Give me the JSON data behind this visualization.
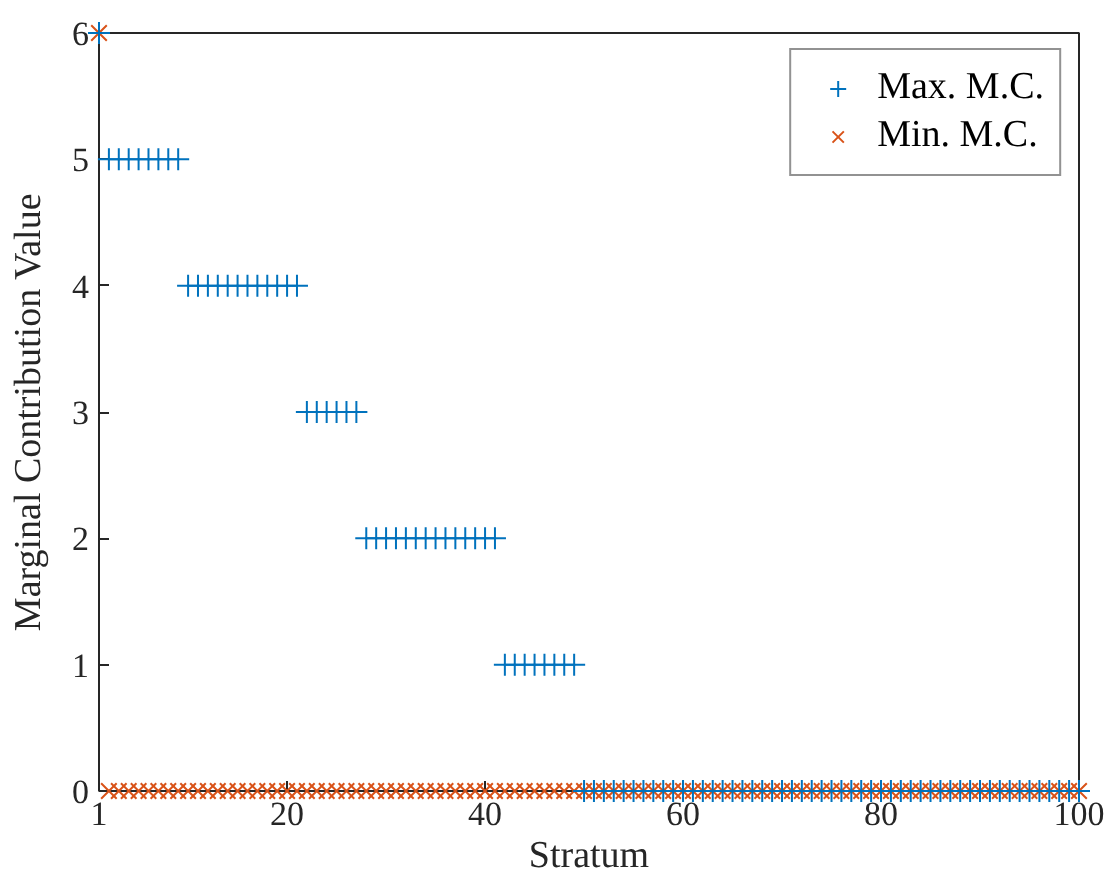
{
  "chart_data": {
    "type": "scatter",
    "xlabel": "Stratum",
    "ylabel": "Marginal Contribution Value",
    "x": [
      1,
      2,
      3,
      4,
      5,
      6,
      7,
      8,
      9,
      10,
      11,
      12,
      13,
      14,
      15,
      16,
      17,
      18,
      19,
      20,
      21,
      22,
      23,
      24,
      25,
      26,
      27,
      28,
      29,
      30,
      31,
      32,
      33,
      34,
      35,
      36,
      37,
      38,
      39,
      40,
      41,
      42,
      43,
      44,
      45,
      46,
      47,
      48,
      49,
      50,
      51,
      52,
      53,
      54,
      55,
      56,
      57,
      58,
      59,
      60,
      61,
      62,
      63,
      64,
      65,
      66,
      67,
      68,
      69,
      70,
      71,
      72,
      73,
      74,
      75,
      76,
      77,
      78,
      79,
      80,
      81,
      82,
      83,
      84,
      85,
      86,
      87,
      88,
      89,
      90,
      91,
      92,
      93,
      94,
      95,
      96,
      97,
      98,
      99,
      100
    ],
    "series": [
      {
        "name": "Max. M.C.",
        "color": "#0072bd",
        "marker": "cross",
        "values": [
          6,
          5,
          5,
          5,
          5,
          5,
          5,
          5,
          5,
          4,
          4,
          4,
          4,
          4,
          4,
          4,
          4,
          4,
          4,
          4,
          4,
          3,
          3,
          3,
          3,
          3,
          3,
          2,
          2,
          2,
          2,
          2,
          2,
          2,
          2,
          2,
          2,
          2,
          2,
          2,
          2,
          1,
          1,
          1,
          1,
          1,
          1,
          1,
          1,
          0,
          0,
          0,
          0,
          0,
          0,
          0,
          0,
          0,
          0,
          0,
          0,
          0,
          0,
          0,
          0,
          0,
          0,
          0,
          0,
          0,
          0,
          0,
          0,
          0,
          0,
          0,
          0,
          0,
          0,
          0,
          0,
          0,
          0,
          0,
          0,
          0,
          0,
          0,
          0,
          0,
          0,
          0,
          0,
          0,
          0,
          0,
          0,
          0,
          0,
          0
        ]
      },
      {
        "name": "Min. M.C.",
        "color": "#d95319",
        "marker": "x",
        "values": [
          6,
          0,
          0,
          0,
          0,
          0,
          0,
          0,
          0,
          0,
          0,
          0,
          0,
          0,
          0,
          0,
          0,
          0,
          0,
          0,
          0,
          0,
          0,
          0,
          0,
          0,
          0,
          0,
          0,
          0,
          0,
          0,
          0,
          0,
          0,
          0,
          0,
          0,
          0,
          0,
          0,
          0,
          0,
          0,
          0,
          0,
          0,
          0,
          0,
          0,
          0,
          0,
          0,
          0,
          0,
          0,
          0,
          0,
          0,
          0,
          0,
          0,
          0,
          0,
          0,
          0,
          0,
          0,
          0,
          0,
          0,
          0,
          0,
          0,
          0,
          0,
          0,
          0,
          0,
          0,
          0,
          0,
          0,
          0,
          0,
          0,
          0,
          0,
          0,
          0,
          0,
          0,
          0,
          0,
          0,
          0,
          0,
          0,
          0,
          0
        ]
      }
    ],
    "xlim": [
      1,
      100
    ],
    "xticks": [
      1,
      20,
      40,
      60,
      80,
      100
    ],
    "ylim": [
      0,
      6
    ],
    "yticks": [
      0,
      1,
      2,
      3,
      4,
      5,
      6
    ],
    "grid": false,
    "legend": "top right"
  }
}
